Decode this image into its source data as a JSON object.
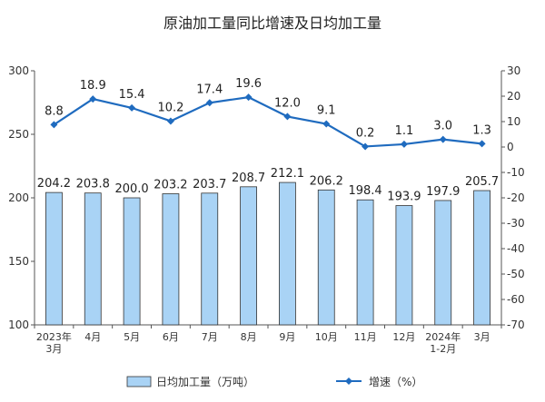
{
  "chart_data": {
    "type": "bar",
    "title": "原油加工量同比增速及日均加工量",
    "categories": [
      [
        "2023年",
        "3月"
      ],
      [
        "4月"
      ],
      [
        "5月"
      ],
      [
        "6月"
      ],
      [
        "7月"
      ],
      [
        "8月"
      ],
      [
        "9月"
      ],
      [
        "10月"
      ],
      [
        "11月"
      ],
      [
        "12月"
      ],
      [
        "2024年",
        "1-2月"
      ],
      [
        "3月"
      ]
    ],
    "series": [
      {
        "name": "日均加工量（万吨）",
        "type": "bar",
        "axis": "left",
        "color": "#a9d3f5",
        "values": [
          204.2,
          203.8,
          200.0,
          203.2,
          203.7,
          208.7,
          212.1,
          206.2,
          198.4,
          193.9,
          197.9,
          205.7
        ],
        "labels": [
          "204.2",
          "203.8",
          "200.0",
          "203.2",
          "203.7",
          "208.7",
          "212.1",
          "206.2",
          "198.4",
          "193.9",
          "197.9",
          "205.7"
        ]
      },
      {
        "name": "增速（%）",
        "type": "line",
        "axis": "right",
        "color": "#1f6bbf",
        "values": [
          8.8,
          18.9,
          15.4,
          10.2,
          17.4,
          19.6,
          12.0,
          9.1,
          0.2,
          1.1,
          3.0,
          1.3
        ],
        "labels": [
          "8.8",
          "18.9",
          "15.4",
          "10.2",
          "17.4",
          "19.6",
          "12.0",
          "9.1",
          "0.2",
          "1.1",
          "3.0",
          "1.3"
        ]
      }
    ],
    "y_left": {
      "min": 100,
      "max": 300,
      "ticks": [
        "100",
        "150",
        "200",
        "250",
        "300"
      ]
    },
    "y_right": {
      "min": -70,
      "max": 30,
      "ticks": [
        "-70",
        "-60",
        "-50",
        "-40",
        "-30",
        "-20",
        "-10",
        "0",
        "10",
        "20",
        "30"
      ]
    },
    "grid": false,
    "legend_position": "bottom"
  }
}
